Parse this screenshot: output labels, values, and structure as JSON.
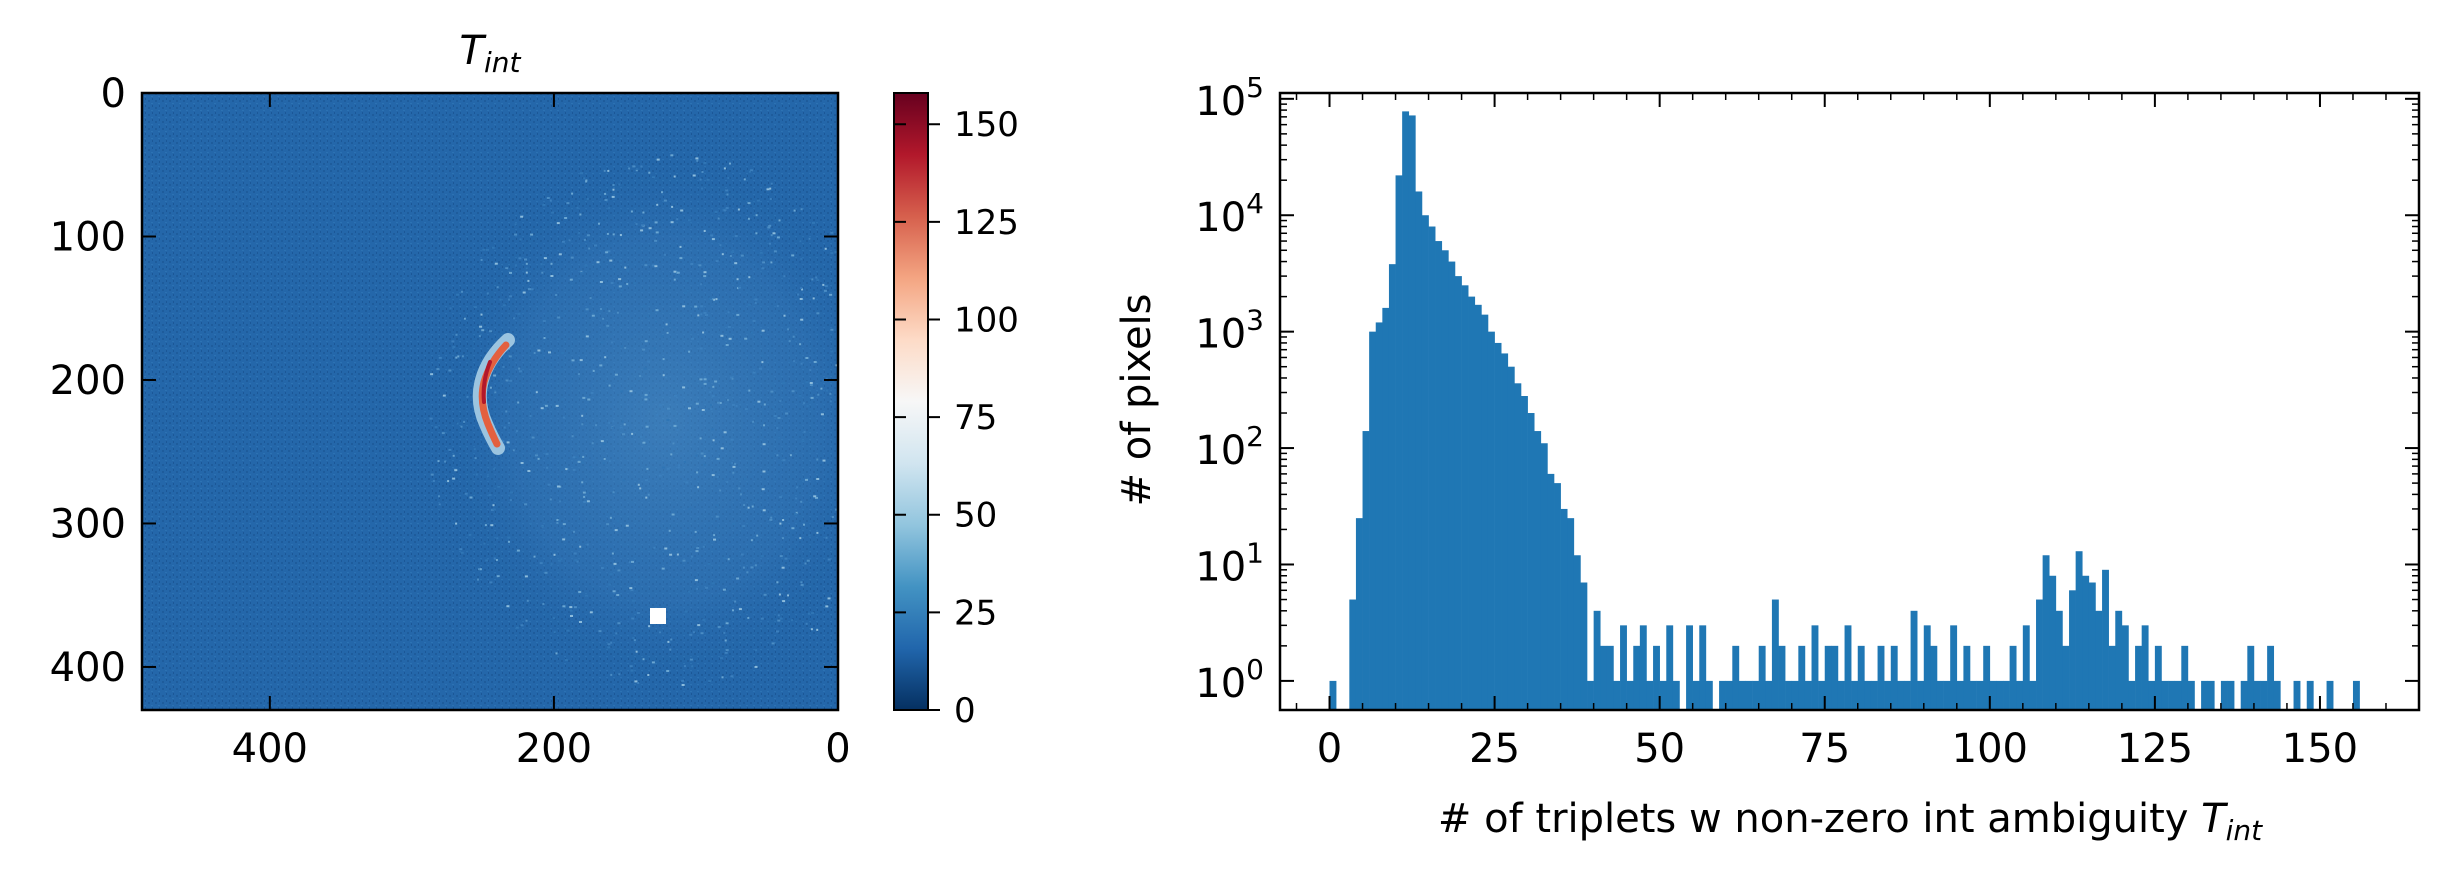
{
  "chart_data": [
    {
      "type": "heatmap",
      "title": "T",
      "title_subscript": "int",
      "xlim": [
        490,
        0
      ],
      "ylim": [
        430,
        0
      ],
      "x_ticks": [
        400,
        200,
        0
      ],
      "y_ticks": [
        0,
        100,
        200,
        300,
        400
      ],
      "x_tick_labels": [
        "400",
        "200",
        "0"
      ],
      "y_tick_labels": [
        "0",
        "100",
        "200",
        "300",
        "400"
      ],
      "colormap": "RdBu_r",
      "background_value": 22,
      "colorbar": {
        "min": 0,
        "max": 158,
        "ticks": [
          0,
          25,
          50,
          75,
          100,
          125,
          150
        ],
        "tick_labels": [
          "0",
          "25",
          "50",
          "75",
          "100",
          "125",
          "150"
        ],
        "colors": [
          "#053061",
          "#2166ac",
          "#4393c3",
          "#92c5de",
          "#d1e5f0",
          "#f7f7f7",
          "#fddbc7",
          "#f4a582",
          "#d6604d",
          "#b2182b",
          "#67001f"
        ]
      },
      "features": [
        {
          "kind": "arc",
          "description_values": [
            [
              232,
              172
            ],
            [
              240,
              185
            ],
            [
              248,
              205
            ],
            [
              247,
              225
            ],
            [
              241,
              240
            ],
            [
              236,
              250
            ]
          ],
          "value": 120
        },
        {
          "kind": "square",
          "x": 125,
          "y": 362,
          "size": 10,
          "color": "#ffffff"
        },
        {
          "kind": "diffuse-disk",
          "cx": 120,
          "cy": 240,
          "r": 170,
          "value": 35
        }
      ]
    },
    {
      "type": "bar",
      "subtype": "histogram",
      "xlabel": "# of triplets w non-zero int ambiguity ",
      "xlabel_math": "T",
      "xlabel_subscript": "int",
      "ylabel": "# of pixels",
      "xlim": [
        -7.5,
        165
      ],
      "ylim_exp": [
        -0.25,
        5.05
      ],
      "yscale": "log",
      "bar_color": "#1f77b4",
      "x_ticks": [
        0,
        25,
        50,
        75,
        100,
        125,
        150
      ],
      "x_tick_labels": [
        "0",
        "25",
        "50",
        "75",
        "100",
        "125",
        "150"
      ],
      "y_ticks_base": "10",
      "y_ticks_exp": [
        "0",
        "1",
        "2",
        "3",
        "4",
        "5"
      ],
      "bin_width": 1,
      "bins_start": 0,
      "counts": [
        1,
        0,
        0,
        5,
        25,
        140,
        1000,
        1200,
        1600,
        3800,
        22000,
        78000,
        72000,
        16000,
        10000,
        8000,
        6000,
        5000,
        4000,
        3000,
        2500,
        2000,
        1700,
        1400,
        1000,
        800,
        650,
        500,
        360,
        280,
        200,
        140,
        110,
        60,
        50,
        30,
        25,
        12,
        7,
        1,
        4,
        2,
        2,
        1,
        3,
        1,
        2,
        3,
        1,
        2,
        1,
        3,
        1,
        0,
        3,
        1,
        3,
        1,
        0,
        1,
        1,
        2,
        1,
        1,
        1,
        2,
        1,
        5,
        2,
        1,
        1,
        2,
        1,
        3,
        1,
        2,
        2,
        1,
        3,
        1,
        2,
        1,
        1,
        2,
        1,
        2,
        1,
        1,
        4,
        1,
        3,
        2,
        1,
        1,
        3,
        1,
        2,
        1,
        1,
        2,
        1,
        1,
        1,
        2,
        1,
        3,
        1,
        5,
        12,
        8,
        4,
        2,
        6,
        13,
        8,
        7,
        4,
        9,
        2,
        4,
        3,
        1,
        2,
        3,
        1,
        2,
        1,
        1,
        1,
        2,
        1,
        0,
        1,
        1,
        0,
        1,
        1,
        0,
        1,
        2,
        1,
        1,
        2,
        1,
        0,
        0,
        1,
        0,
        1,
        0,
        0,
        1,
        0,
        0,
        0,
        1
      ]
    }
  ]
}
